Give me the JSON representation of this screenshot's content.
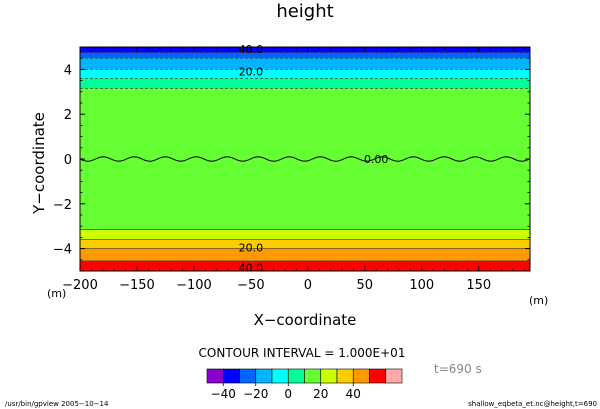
{
  "chart_data": {
    "type": "heatmap",
    "title": "height",
    "xlabel": "X−coordinate",
    "ylabel": "Y−coordinate",
    "x_unit": "(m)",
    "y_unit": "(m)",
    "xlim": [
      -200,
      195
    ],
    "ylim": [
      -5,
      5
    ],
    "xticks": [
      -200,
      -150,
      -100,
      -50,
      0,
      50,
      100,
      150
    ],
    "xtick_labels": [
      "−200",
      "−150",
      "−100",
      "−50",
      "0",
      "50",
      "100",
      "150"
    ],
    "yticks": [
      -4,
      -2,
      0,
      2,
      4
    ],
    "ytick_labels": [
      "−4",
      "−2",
      "0",
      "2",
      "4"
    ],
    "bands": [
      {
        "y0": -5.0,
        "y1": -4.55,
        "color": "#ff0000"
      },
      {
        "y0": -4.55,
        "y1": -4.0,
        "color": "#ff9900"
      },
      {
        "y0": -4.0,
        "y1": -3.6,
        "color": "#ffcc00"
      },
      {
        "y0": -3.6,
        "y1": -3.15,
        "color": "#ccff00"
      },
      {
        "y0": -3.15,
        "y1": 3.15,
        "color": "#66ff33"
      },
      {
        "y0": 3.15,
        "y1": 3.6,
        "color": "#00ff99"
      },
      {
        "y0": 3.6,
        "y1": 4.0,
        "color": "#00ffff"
      },
      {
        "y0": 4.0,
        "y1": 4.5,
        "color": "#00b4ff"
      },
      {
        "y0": 4.5,
        "y1": 4.75,
        "color": "#0066ff"
      },
      {
        "y0": 4.75,
        "y1": 5.0,
        "color": "#0000ff"
      }
    ],
    "contour_labels": [
      {
        "text": "40.0",
        "x": -50,
        "y": 4.9
      },
      {
        "text": "20.0",
        "x": -50,
        "y": 3.9
      },
      {
        "text": "0.00",
        "x": 60,
        "y": 0
      },
      {
        "text": "20.0",
        "x": -50,
        "y": -3.95
      },
      {
        "text": "40.0",
        "x": -50,
        "y": -4.85
      }
    ],
    "contour_interval_text": "CONTOUR INTERVAL = 1.000E+01",
    "time_text": "t=690  s",
    "colorbar": {
      "levels": [
        -40,
        -20,
        0,
        20,
        40
      ],
      "level_labels": [
        "−40",
        "−20",
        "0",
        "20",
        "40"
      ],
      "colors": [
        "#8800cc",
        "#0000ff",
        "#0066ff",
        "#00b4ff",
        "#00ffff",
        "#00ff99",
        "#66ff33",
        "#ccff00",
        "#ffcc00",
        "#ff9900",
        "#ff0000",
        "#ffaaaa"
      ]
    }
  },
  "footer": {
    "left": "/usr/bin/gpview  2005−10−14",
    "right": "shallow_eqbeta_et.nc@height,t=690"
  }
}
